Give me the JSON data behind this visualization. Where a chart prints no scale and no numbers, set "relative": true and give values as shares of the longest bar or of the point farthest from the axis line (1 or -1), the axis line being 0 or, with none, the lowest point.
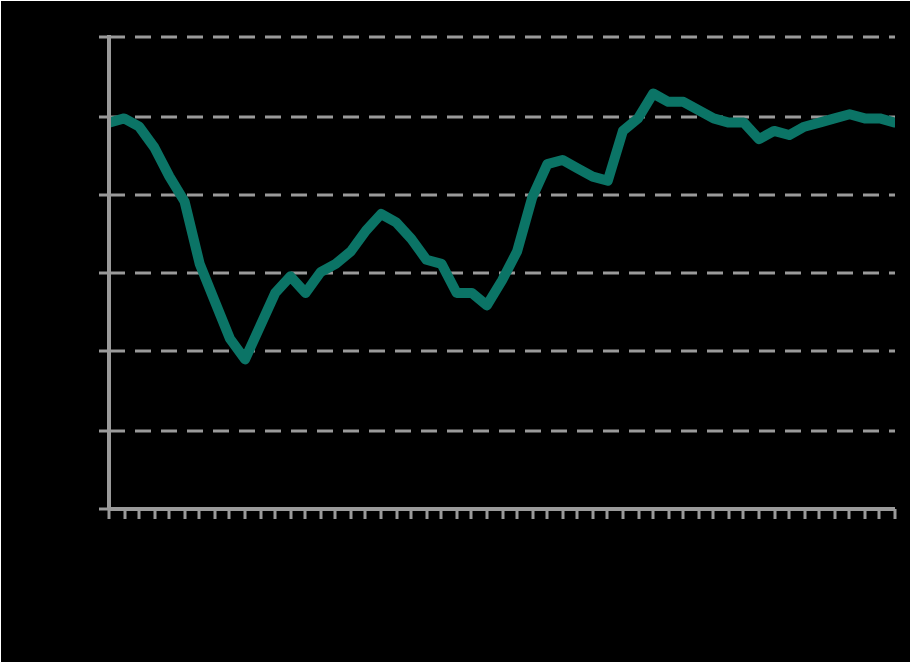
{
  "chart_data": {
    "type": "line",
    "relative": true,
    "grid": "y",
    "marker": "none",
    "line_style": "solid",
    "categories": [
      null,
      null,
      null,
      null,
      null,
      null,
      null,
      null,
      null,
      null,
      null,
      null,
      null,
      null,
      null,
      null,
      null,
      null,
      null,
      null,
      null,
      null,
      null,
      null,
      null,
      null,
      null,
      null,
      null,
      null,
      null,
      null,
      null,
      null,
      null,
      null,
      null,
      null,
      null,
      null,
      null,
      null,
      null,
      null,
      null,
      null,
      null,
      null,
      null,
      null,
      null,
      null,
      null
    ],
    "series": [
      {
        "color": "#0b7466",
        "values": [
          0.93,
          0.94,
          0.92,
          0.87,
          0.8,
          0.74,
          0.59,
          0.5,
          0.41,
          0.36,
          0.44,
          0.52,
          0.56,
          0.52,
          0.57,
          0.59,
          0.62,
          0.67,
          0.71,
          0.69,
          0.65,
          0.6,
          0.59,
          0.52,
          0.52,
          0.49,
          0.55,
          0.62,
          0.75,
          0.83,
          0.84,
          0.82,
          0.8,
          0.79,
          0.91,
          0.94,
          1.0,
          0.98,
          0.98,
          0.96,
          0.94,
          0.93,
          0.93,
          0.89,
          0.91,
          0.9,
          0.92,
          0.93,
          0.94,
          0.95,
          0.94,
          0.94,
          0.93
        ]
      }
    ]
  }
}
